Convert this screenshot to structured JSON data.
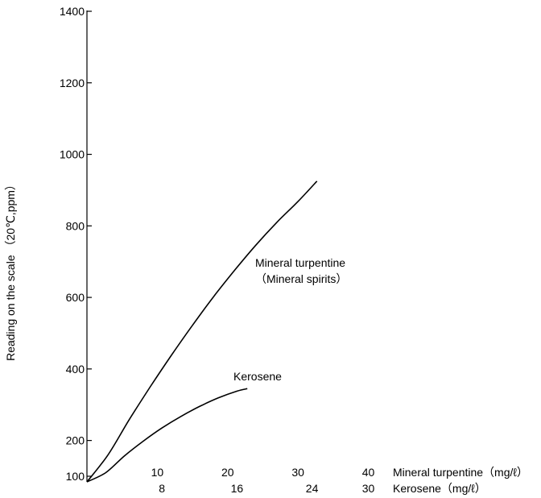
{
  "chart_data": {
    "type": "line",
    "title": "",
    "ylabel": "Reading on the scale （20℃,ppm）",
    "ylim": [
      100,
      1400
    ],
    "y_ticks": [
      {
        "value": 100,
        "label": "100"
      },
      {
        "value": 200,
        "label": "200"
      },
      {
        "value": 400,
        "label": "400"
      },
      {
        "value": 600,
        "label": "600"
      },
      {
        "value": 800,
        "label": "800"
      },
      {
        "value": 1000,
        "label": "1000"
      },
      {
        "value": 1200,
        "label": "1200"
      },
      {
        "value": 1400,
        "label": "1400"
      }
    ],
    "x_axes": [
      {
        "label": "Mineral turpentine（mg/ℓ）",
        "range": [
          0,
          40
        ],
        "ticks": [
          {
            "value": 10,
            "label": "10"
          },
          {
            "value": 20,
            "label": "20"
          },
          {
            "value": 30,
            "label": "30"
          },
          {
            "value": 40,
            "label": "40"
          }
        ]
      },
      {
        "label": "Kerosene（mg/ℓ）",
        "range": [
          0,
          32
        ],
        "ticks": [
          {
            "value": 8,
            "label": "8"
          },
          {
            "value": 16,
            "label": "16"
          },
          {
            "value": 24,
            "label": "24"
          },
          {
            "value": 30,
            "label": "30"
          }
        ]
      }
    ],
    "series": [
      {
        "name": "Mineral turpentine",
        "name_line2": "（Mineral spirits）",
        "x_axis": 0,
        "x": [
          0,
          3,
          6,
          9,
          12,
          15,
          18,
          21,
          24,
          27,
          30,
          32.7
        ],
        "y": [
          55,
          160,
          258,
          350,
          438,
          522,
          602,
          676,
          746,
          810,
          868,
          925
        ]
      },
      {
        "name": "Kerosene",
        "x_axis": 1,
        "x": [
          0,
          2,
          4,
          6,
          8,
          10,
          12,
          14,
          16,
          17.1
        ],
        "y": [
          55,
          110,
          157,
          198,
          235,
          267,
          295,
          319,
          338,
          345
        ]
      }
    ]
  }
}
